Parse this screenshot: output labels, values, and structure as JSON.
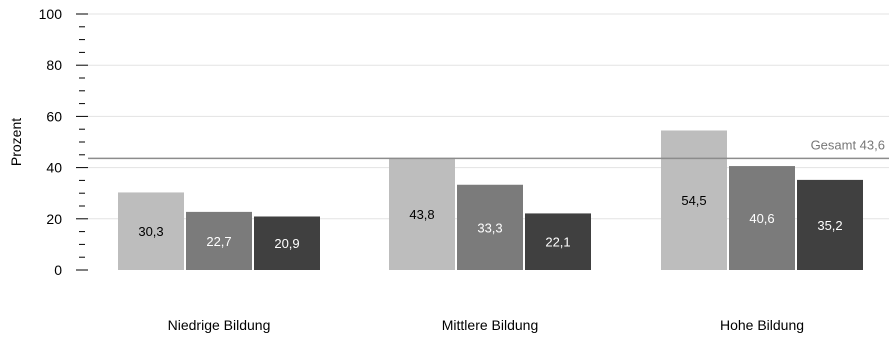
{
  "chart_data": {
    "type": "bar",
    "categories": [
      "Niedrige Bildung",
      "Mittlere Bildung",
      "Hohe Bildung"
    ],
    "series": [
      {
        "values": [
          30.3,
          43.8,
          54.5
        ],
        "labels": [
          "30,3",
          "43,8",
          "54,5"
        ],
        "color": "#bdbdbd",
        "label_color": "#000000"
      },
      {
        "values": [
          22.7,
          33.3,
          40.6
        ],
        "labels": [
          "22,7",
          "33,3",
          "40,6"
        ],
        "color": "#7b7b7b",
        "label_color": "#ffffff"
      },
      {
        "values": [
          20.9,
          22.1,
          35.2
        ],
        "labels": [
          "20,9",
          "22,1",
          "35,2"
        ],
        "color": "#404040",
        "label_color": "#ffffff"
      }
    ],
    "ylabel": "Prozent",
    "xlabel": "",
    "ylim": [
      0,
      100
    ],
    "yticks": [
      0,
      20,
      40,
      60,
      80,
      100
    ],
    "reference_line": {
      "value": 43.6,
      "label": "Gesamt 43,6",
      "color": "#8c8c8c"
    },
    "grid": true,
    "gridline_color": "#e3e3e3"
  }
}
